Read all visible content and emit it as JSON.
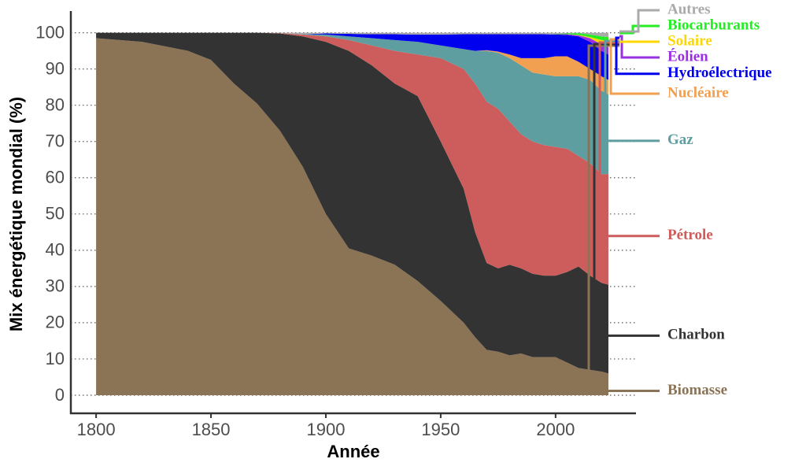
{
  "chart_data": {
    "type": "stacked-area",
    "x_label": "Année",
    "y_label": "Mix énergétique mondial (%)",
    "x": [
      1800,
      1820,
      1840,
      1850,
      1860,
      1870,
      1880,
      1890,
      1900,
      1910,
      1920,
      1930,
      1940,
      1950,
      1960,
      1965,
      1970,
      1975,
      1980,
      1985,
      1990,
      1995,
      2000,
      2005,
      2010,
      2015,
      2020,
      2023
    ],
    "series": [
      {
        "name": "Biomasse",
        "color": "#8b7355",
        "values": [
          98.5,
          97.5,
          95,
          92.5,
          86,
          80.5,
          73,
          63,
          50,
          40.5,
          38.5,
          36,
          31.5,
          26,
          20,
          16,
          12.5,
          12,
          11,
          11.5,
          10.5,
          10.5,
          10.5,
          9,
          7.5,
          7,
          6.5,
          6
        ]
      },
      {
        "name": "Charbon",
        "color": "#333333",
        "values": [
          1.5,
          2.5,
          5,
          7.5,
          14,
          19.5,
          26.8,
          36,
          47.5,
          54.5,
          52.5,
          50,
          51,
          44,
          37,
          29,
          24,
          23,
          25,
          23.5,
          23,
          22.5,
          22.5,
          25,
          28,
          26,
          24.5,
          24.5
        ]
      },
      {
        "name": "Pétrole",
        "color": "#cd5c5c",
        "values": [
          0,
          0,
          0,
          0,
          0,
          0,
          0.1,
          0.5,
          1.5,
          3,
          5.5,
          9,
          11.5,
          23,
          33,
          41,
          44.5,
          44,
          39.5,
          37,
          36.5,
          36,
          35.5,
          34,
          30.5,
          31,
          30,
          30.5
        ]
      },
      {
        "name": "Gaz",
        "color": "#5f9ea0",
        "values": [
          0,
          0,
          0,
          0,
          0,
          0,
          0,
          0.1,
          0.5,
          1,
          2,
          3,
          3.5,
          3.5,
          5.5,
          9,
          14,
          15.5,
          17.5,
          19,
          19,
          19.5,
          19.5,
          20,
          22,
          23,
          23,
          22
        ]
      },
      {
        "name": "Nucléaire",
        "color": "#f0a050",
        "values": [
          0,
          0,
          0,
          0,
          0,
          0,
          0,
          0,
          0,
          0,
          0,
          0,
          0,
          0,
          0,
          0,
          0.2,
          0.3,
          1,
          2,
          4,
          4.5,
          5.5,
          5.5,
          4,
          3,
          4,
          4
        ]
      },
      {
        "name": "Hydroélectrique",
        "color": "#0000ee",
        "values": [
          0,
          0,
          0,
          0,
          0,
          0,
          0,
          0,
          0.3,
          0.7,
          1.1,
          1.6,
          2,
          3,
          4.1,
          4.6,
          4.4,
          4.8,
          5.6,
          6.6,
          6.6,
          6.6,
          6,
          5.9,
          7,
          7.5,
          7,
          7
        ]
      },
      {
        "name": "Éolien",
        "color": "#9b30e0",
        "values": [
          0,
          0,
          0,
          0,
          0,
          0,
          0,
          0,
          0,
          0,
          0,
          0,
          0,
          0,
          0,
          0,
          0,
          0,
          0,
          0,
          0,
          0,
          0.1,
          0.2,
          0.3,
          1,
          1.8,
          2
        ]
      },
      {
        "name": "Solaire",
        "color": "#ffd700",
        "values": [
          0,
          0,
          0,
          0,
          0,
          0,
          0,
          0,
          0,
          0,
          0,
          0,
          0,
          0,
          0,
          0,
          0,
          0,
          0,
          0,
          0,
          0,
          0,
          0,
          0.1,
          0.3,
          1.2,
          1.7
        ]
      },
      {
        "name": "Biocarburants",
        "color": "#22ee22",
        "values": [
          0,
          0,
          0,
          0,
          0,
          0,
          0,
          0,
          0,
          0,
          0,
          0,
          0,
          0,
          0,
          0,
          0,
          0,
          0,
          0,
          0,
          0,
          0.1,
          0.2,
          0.5,
          0.7,
          1,
          1.1
        ]
      },
      {
        "name": "Autres",
        "color": "#aaaaaa",
        "values": [
          0,
          0,
          0,
          0,
          0,
          0,
          0.1,
          0.4,
          0.2,
          0.3,
          0.4,
          0.4,
          0.5,
          0.5,
          0.4,
          0.4,
          0.4,
          0.4,
          0.4,
          0.4,
          0.4,
          0.4,
          0.3,
          0.2,
          0.1,
          0.5,
          1,
          1.2
        ]
      }
    ],
    "xlim": [
      1789,
      2035
    ],
    "xticks": [
      1800,
      1850,
      1900,
      1950,
      2000
    ],
    "ylim": [
      -5,
      106
    ],
    "yticks": [
      0,
      10,
      20,
      30,
      40,
      50,
      60,
      70,
      80,
      90,
      100
    ],
    "grid": true
  }
}
